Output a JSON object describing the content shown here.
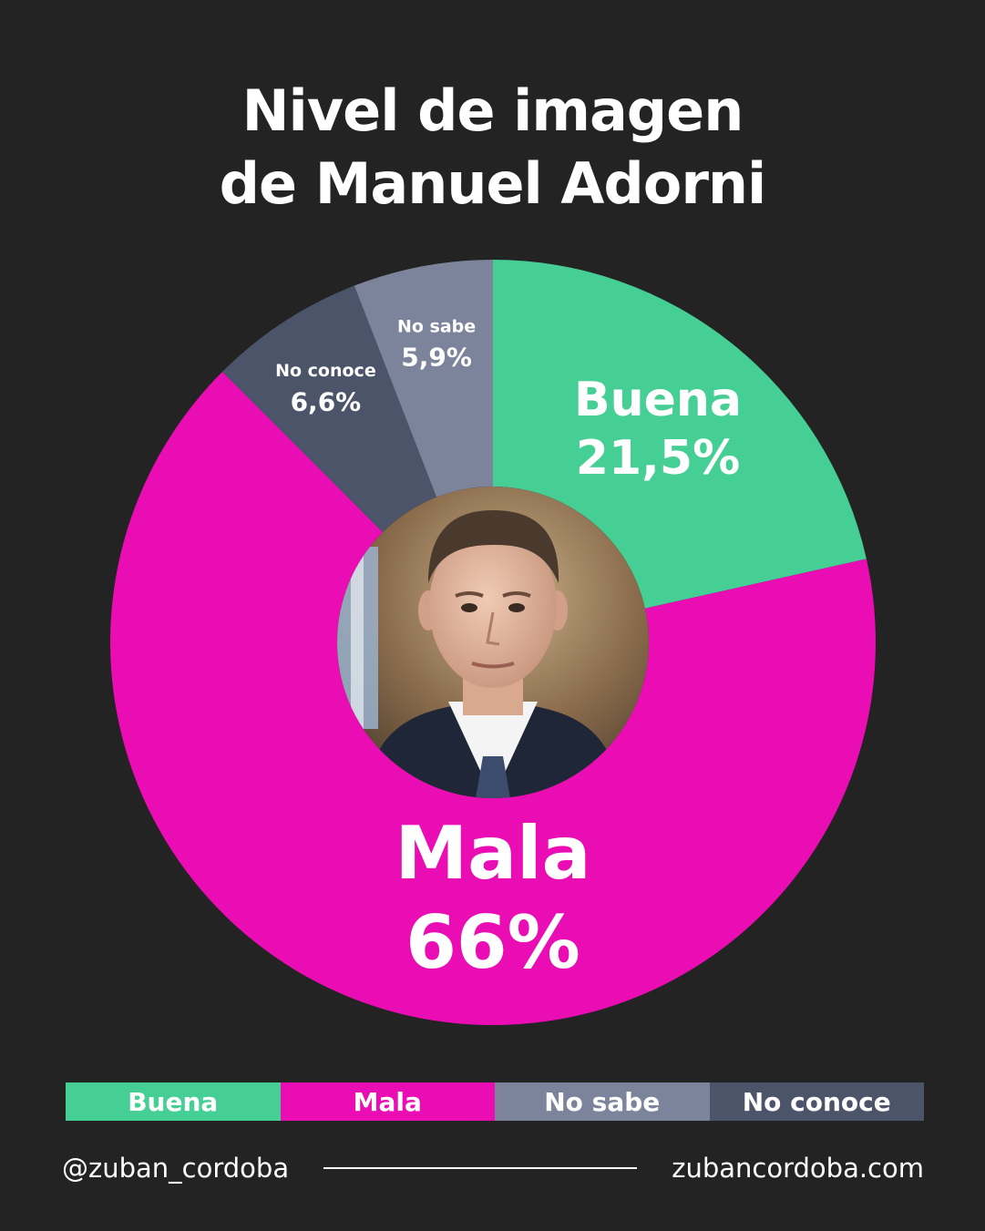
{
  "title": {
    "line1": "Nivel de imagen",
    "line2": "de  Manuel Adorni"
  },
  "chart_data": {
    "type": "pie",
    "variant": "donut",
    "slices": [
      {
        "label": "Buena",
        "value": 21.5,
        "display": "21,5%",
        "color": "#45cf94"
      },
      {
        "label": "Mala",
        "value": 66,
        "display": "66%",
        "color": "#ea0db4"
      },
      {
        "label": "No conoce",
        "value": 6.6,
        "display": "6,6%",
        "color": "#4b5468"
      },
      {
        "label": "No sabe",
        "value": 5.9,
        "display": "5,9%",
        "color": "#7b849a"
      }
    ],
    "center_image": "portrait"
  },
  "legend": [
    {
      "label": "Buena",
      "color": "#45cf94"
    },
    {
      "label": "Mala",
      "color": "#ea0db4"
    },
    {
      "label": "No sabe",
      "color": "#7b849a"
    },
    {
      "label": "No conoce",
      "color": "#4b5468"
    }
  ],
  "footer": {
    "handle": "@zuban_cordoba",
    "website": "zubancordoba.com"
  }
}
